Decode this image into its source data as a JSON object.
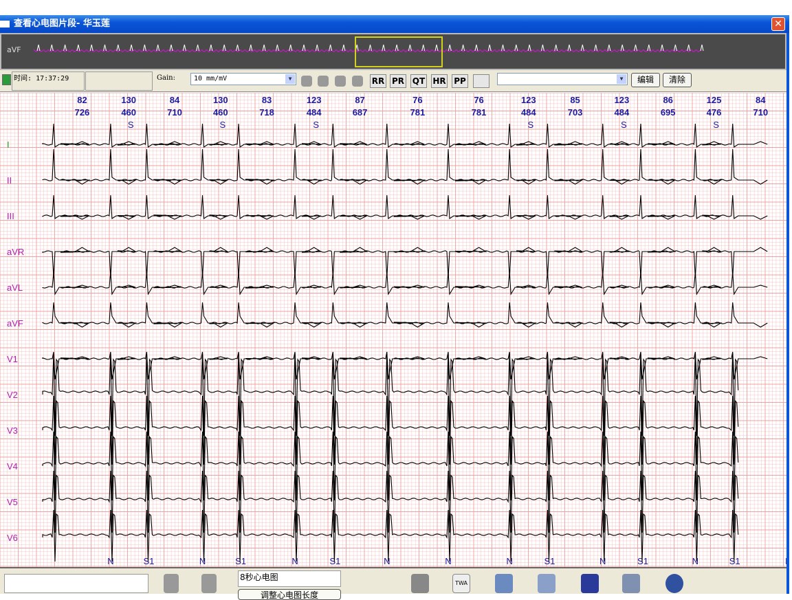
{
  "window": {
    "title": "查看心电图片段- 华玉莲",
    "close_label": "✕"
  },
  "overview": {
    "lead": "aVF",
    "trace_color": "#b020b0"
  },
  "toolbar": {
    "time_label": "时间:",
    "time_value": "17:37:29",
    "gain_label": "Gain:",
    "gain_value": "10  mm/mV",
    "measure_buttons": [
      "RR",
      "PR",
      "QT",
      "HR",
      "PP"
    ],
    "edit_label": "编辑",
    "clear_label": "清除",
    "dropdown_value": ""
  },
  "ecg": {
    "grid_color": "#f0a0a0",
    "trace_color": "#000000",
    "label_color": "#1a1aa0",
    "leads": [
      {
        "name": "I",
        "color": "#20a020"
      },
      {
        "name": "II",
        "color": "#b020b0"
      },
      {
        "name": "III",
        "color": "#b020b0"
      },
      {
        "name": "aVR",
        "color": "#b020b0"
      },
      {
        "name": "aVL",
        "color": "#b020b0"
      },
      {
        "name": "aVF",
        "color": "#b020b0"
      },
      {
        "name": "V1",
        "color": "#b020b0"
      },
      {
        "name": "V2",
        "color": "#b020b0"
      },
      {
        "name": "V3",
        "color": "#b020b0"
      },
      {
        "name": "V4",
        "color": "#b020b0"
      },
      {
        "name": "V5",
        "color": "#b020b0"
      },
      {
        "name": "V6",
        "color": "#b020b0"
      }
    ],
    "intervals": [
      {
        "hr": "82",
        "rr": "726",
        "tag": ""
      },
      {
        "hr": "130",
        "rr": "460",
        "tag": "S"
      },
      {
        "hr": "84",
        "rr": "710",
        "tag": ""
      },
      {
        "hr": "130",
        "rr": "460",
        "tag": "S"
      },
      {
        "hr": "83",
        "rr": "718",
        "tag": ""
      },
      {
        "hr": "123",
        "rr": "484",
        "tag": "S"
      },
      {
        "hr": "87",
        "rr": "687",
        "tag": ""
      },
      {
        "hr": "76",
        "rr": "781",
        "tag": ""
      },
      {
        "hr": "76",
        "rr": "781",
        "tag": ""
      },
      {
        "hr": "123",
        "rr": "484",
        "tag": "S"
      },
      {
        "hr": "85",
        "rr": "703",
        "tag": ""
      },
      {
        "hr": "123",
        "rr": "484",
        "tag": "S"
      },
      {
        "hr": "86",
        "rr": "695",
        "tag": ""
      },
      {
        "hr": "125",
        "rr": "476",
        "tag": "S"
      },
      {
        "hr": "84",
        "rr": "710",
        "tag": ""
      }
    ],
    "beat_labels": [
      "N",
      "S1",
      "N",
      "S1",
      "N",
      "S1",
      "N",
      "N",
      "N",
      "S1",
      "N",
      "S1",
      "N",
      "S1",
      "N"
    ]
  },
  "bottom": {
    "note_value": "",
    "segment_label": "8秒心电图",
    "length_button": "调整心电图长度",
    "icons": [
      "check-icon",
      "trash-icon",
      "doc-icon",
      "twa-icon",
      "image-icon",
      "print-icon",
      "save-icon",
      "export-icon",
      "info-icon"
    ]
  }
}
